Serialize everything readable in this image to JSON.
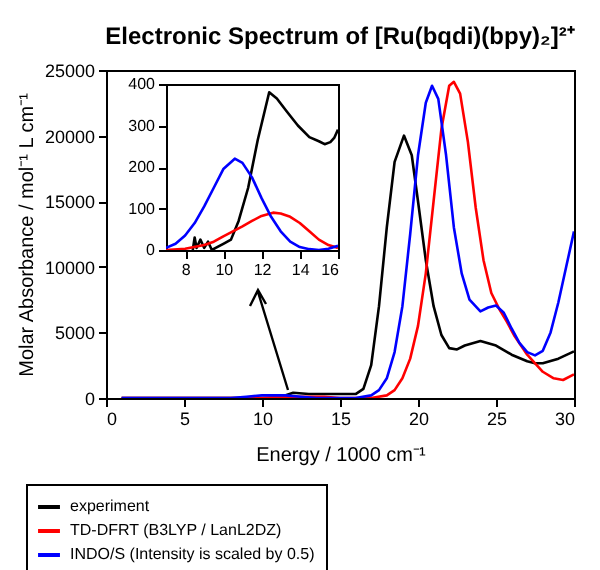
{
  "chart_data": [
    {
      "type": "line",
      "title": "Electronic Spectrum of [Ru(bqdi)(bpy)₂]²⁺",
      "xlabel": "Energy / 1000 cm⁻¹",
      "ylabel": "Molar Absorbance / mol⁻¹ L cm⁻¹",
      "xlim": [
        0,
        30
      ],
      "xticks": [
        0,
        5,
        10,
        15,
        20,
        25,
        30
      ],
      "ylim": [
        0,
        25000
      ],
      "yticks": [
        0,
        5000,
        10000,
        15000,
        20000,
        25000
      ],
      "legend": "bottom",
      "series": [
        {
          "name": "experiment",
          "color": "#000000",
          "x": [
            1,
            8,
            10,
            11,
            12,
            13,
            14,
            15,
            16,
            16.5,
            17,
            17.5,
            18,
            18.5,
            19.1,
            19.6,
            20,
            20.5,
            21,
            21.5,
            22,
            22.5,
            23,
            24,
            25,
            26,
            27,
            27.5,
            28,
            29,
            30
          ],
          "values": [
            0,
            0,
            0,
            0,
            400,
            300,
            300,
            300,
            300,
            700,
            2500,
            7000,
            13000,
            18000,
            20000,
            18500,
            15000,
            10500,
            7000,
            4800,
            3800,
            3700,
            4000,
            4350,
            4000,
            3300,
            2800,
            2650,
            2650,
            3000,
            3550
          ]
        },
        {
          "name": "TD-DFRT (B3LYP / LanL2DZ)",
          "color": "#ff0000",
          "x": [
            1,
            8,
            9,
            10,
            11,
            12.6,
            14,
            15,
            16,
            17,
            18,
            18.5,
            19,
            19.5,
            20,
            20.5,
            21,
            21.5,
            22,
            22.3,
            22.7,
            23.2,
            23.7,
            24.2,
            24.7,
            25.2,
            25.7,
            26.2,
            27,
            28,
            28.7,
            29.3,
            30
          ],
          "values": [
            0,
            0,
            0,
            0,
            100,
            100,
            100,
            0,
            0,
            0,
            200,
            600,
            1500,
            3000,
            5500,
            9500,
            15000,
            20500,
            23800,
            24100,
            23200,
            19500,
            14500,
            10500,
            8000,
            6800,
            5800,
            4700,
            3300,
            2000,
            1500,
            1370,
            1800
          ]
        },
        {
          "name": "INDO/S (Intensity is scaled by 0.5)",
          "color": "#0000ff",
          "x": [
            1,
            7,
            8,
            9,
            10,
            10.6,
            11.5,
            12.5,
            13.5,
            14.5,
            16,
            17,
            17.5,
            18,
            18.5,
            19,
            19.5,
            20,
            20.5,
            20.9,
            21.3,
            21.8,
            22.3,
            22.8,
            23.3,
            24,
            24.5,
            25,
            25.5,
            26,
            26.5,
            27,
            27.5,
            28,
            28.5,
            29,
            29.5,
            30
          ],
          "values": [
            0,
            0,
            0,
            100,
            200,
            200,
            200,
            100,
            0,
            0,
            0,
            200,
            600,
            1500,
            3500,
            7000,
            12500,
            18500,
            22500,
            23800,
            22800,
            18500,
            13000,
            9500,
            7500,
            6600,
            6900,
            7050,
            6500,
            5300,
            4200,
            3500,
            3250,
            3600,
            5000,
            7300,
            10000,
            12700
          ]
        }
      ]
    },
    {
      "type": "line",
      "xlim": [
        7,
        16
      ],
      "xticks": [
        8,
        10,
        12,
        14,
        16
      ],
      "ylim": [
        0,
        400
      ],
      "yticks": [
        0,
        100,
        200,
        300,
        400
      ],
      "series": [
        {
          "color": "#000000",
          "x": [
            8.4,
            8.5,
            8.6,
            8.8,
            9,
            9.2,
            9.4,
            9.6,
            10,
            10.4,
            10.8,
            11.3,
            11.8,
            12.4,
            12.8,
            13.3,
            13.9,
            14.5,
            15,
            15.3,
            15.6,
            15.8,
            16
          ],
          "values": [
            0,
            30,
            5,
            25,
            5,
            20,
            0,
            5,
            15,
            25,
            70,
            150,
            265,
            380,
            365,
            335,
            300,
            272,
            262,
            255,
            260,
            270,
            290
          ]
        },
        {
          "color": "#ff0000",
          "x": [
            7,
            8,
            9,
            9.5,
            10,
            10.5,
            11,
            11.5,
            12,
            12.6,
            13,
            13.5,
            14,
            14.5,
            15,
            15.5,
            16
          ],
          "values": [
            0,
            3,
            12,
            20,
            33,
            45,
            57,
            70,
            82,
            90,
            88,
            80,
            65,
            45,
            25,
            12,
            5
          ]
        },
        {
          "color": "#0000ff",
          "x": [
            7,
            7.5,
            8,
            8.5,
            9,
            9.5,
            10,
            10.6,
            11,
            11.5,
            12,
            12.5,
            13,
            13.5,
            14,
            14.5,
            15,
            15.5,
            16
          ],
          "values": [
            5,
            15,
            35,
            65,
            105,
            150,
            195,
            220,
            210,
            175,
            125,
            80,
            45,
            20,
            7,
            2,
            0,
            3,
            10
          ]
        }
      ]
    }
  ]
}
